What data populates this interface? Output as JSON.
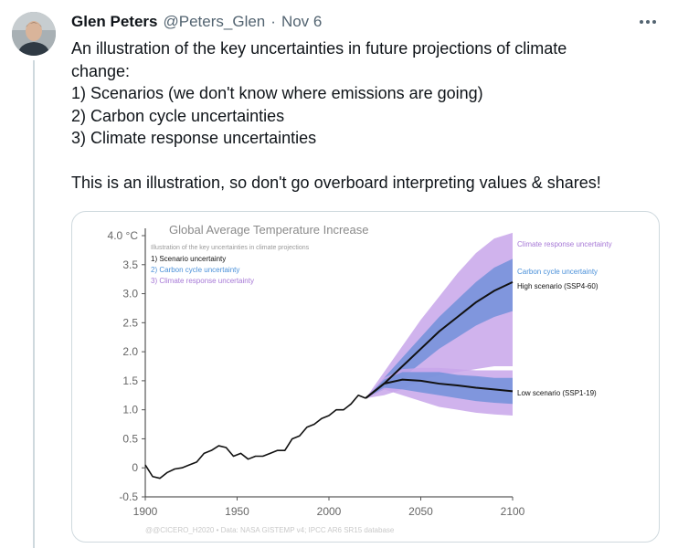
{
  "tweet": {
    "author_name": "Glen Peters",
    "handle": "@Peters_Glen",
    "separator": "·",
    "time": "Nov 6",
    "lines": [
      "An illustration of the key uncertainties in future projections of climate",
      "change:",
      "1) Scenarios (we don't know where emissions are going)",
      "2) Carbon cycle uncertainties",
      "3) Climate response uncertainties"
    ],
    "closing": "This is an illustration, so don't go overboard interpreting values & shares!"
  },
  "icons": {
    "more": "more-horizontal-icon",
    "avatar": "avatar"
  },
  "chart_data": {
    "type": "line",
    "title": "Global Average Temperature Increase",
    "subtitle": "Illustration of the key uncertainties in climate projections",
    "legend": {
      "placement": "top-left",
      "items": [
        {
          "label": "1) Scenario uncertainty",
          "color": "#111111"
        },
        {
          "label": "2) Carbon cycle uncertainty",
          "color": "#4a90d9"
        },
        {
          "label": "3) Climate response uncertainty",
          "color": "#a678d6"
        }
      ]
    },
    "x_ticks": [
      "1900",
      "1950",
      "2000",
      "2050",
      "2100"
    ],
    "y_ticks": [
      "4.0 °C",
      "3.5",
      "3.0",
      "2.5",
      "2.0",
      "1.5",
      "1.0",
      "0.5",
      "0",
      "-0.5"
    ],
    "xlim": [
      1900,
      2100
    ],
    "ylim": [
      -0.5,
      4.0
    ],
    "grid": false,
    "colors": {
      "climate_response": "#c8a6ea",
      "carbon_cycle": "#6b8fd8",
      "line": "#111111"
    },
    "labels": {
      "climate_response": "Climate response uncertainty",
      "carbon_cycle": "Carbon cycle uncertainty",
      "high": "High scenario (SSP4-60)",
      "low": "Low scenario (SSP1-19)"
    },
    "source": "@@CICERO_H2020 • Data: NASA GISTEMP v4; IPCC AR6 SR15 database",
    "historical": {
      "x": [
        1900,
        1904,
        1908,
        1912,
        1916,
        1920,
        1924,
        1928,
        1932,
        1936,
        1940,
        1944,
        1948,
        1952,
        1956,
        1960,
        1964,
        1968,
        1972,
        1976,
        1980,
        1984,
        1988,
        1992,
        1996,
        2000,
        2004,
        2008,
        2012,
        2016,
        2020
      ],
      "y": [
        0.05,
        -0.15,
        -0.18,
        -0.08,
        -0.02,
        0.0,
        0.05,
        0.1,
        0.25,
        0.3,
        0.38,
        0.35,
        0.2,
        0.25,
        0.15,
        0.2,
        0.2,
        0.25,
        0.3,
        0.3,
        0.5,
        0.55,
        0.7,
        0.75,
        0.85,
        0.9,
        1.0,
        1.0,
        1.1,
        1.25,
        1.2
      ]
    },
    "projections": {
      "x": [
        2020,
        2030,
        2040,
        2050,
        2060,
        2070,
        2080,
        2090,
        2100
      ],
      "high": {
        "center": [
          1.2,
          1.45,
          1.75,
          2.05,
          2.35,
          2.6,
          2.85,
          3.05,
          3.2
        ],
        "carbon_lo": [
          1.2,
          1.35,
          1.55,
          1.8,
          2.05,
          2.25,
          2.45,
          2.6,
          2.7
        ],
        "carbon_hi": [
          1.2,
          1.55,
          1.9,
          2.25,
          2.6,
          2.9,
          3.2,
          3.45,
          3.6
        ],
        "climate_lo": [
          1.2,
          1.25,
          1.35,
          1.5,
          1.6,
          1.65,
          1.7,
          1.75,
          1.75
        ],
        "climate_hi": [
          1.2,
          1.65,
          2.1,
          2.55,
          2.95,
          3.35,
          3.7,
          3.95,
          4.05
        ]
      },
      "low": {
        "center": [
          1.2,
          1.45,
          1.52,
          1.5,
          1.45,
          1.42,
          1.38,
          1.35,
          1.32
        ],
        "carbon_lo": [
          1.2,
          1.38,
          1.35,
          1.3,
          1.25,
          1.2,
          1.15,
          1.12,
          1.1
        ],
        "carbon_hi": [
          1.2,
          1.52,
          1.65,
          1.65,
          1.65,
          1.6,
          1.58,
          1.55,
          1.55
        ],
        "climate_lo": [
          1.2,
          1.35,
          1.25,
          1.15,
          1.05,
          1.0,
          0.95,
          0.92,
          0.9
        ],
        "climate_hi": [
          1.2,
          1.55,
          1.7,
          1.72,
          1.72,
          1.7,
          1.68,
          1.68,
          1.68
        ]
      }
    }
  }
}
